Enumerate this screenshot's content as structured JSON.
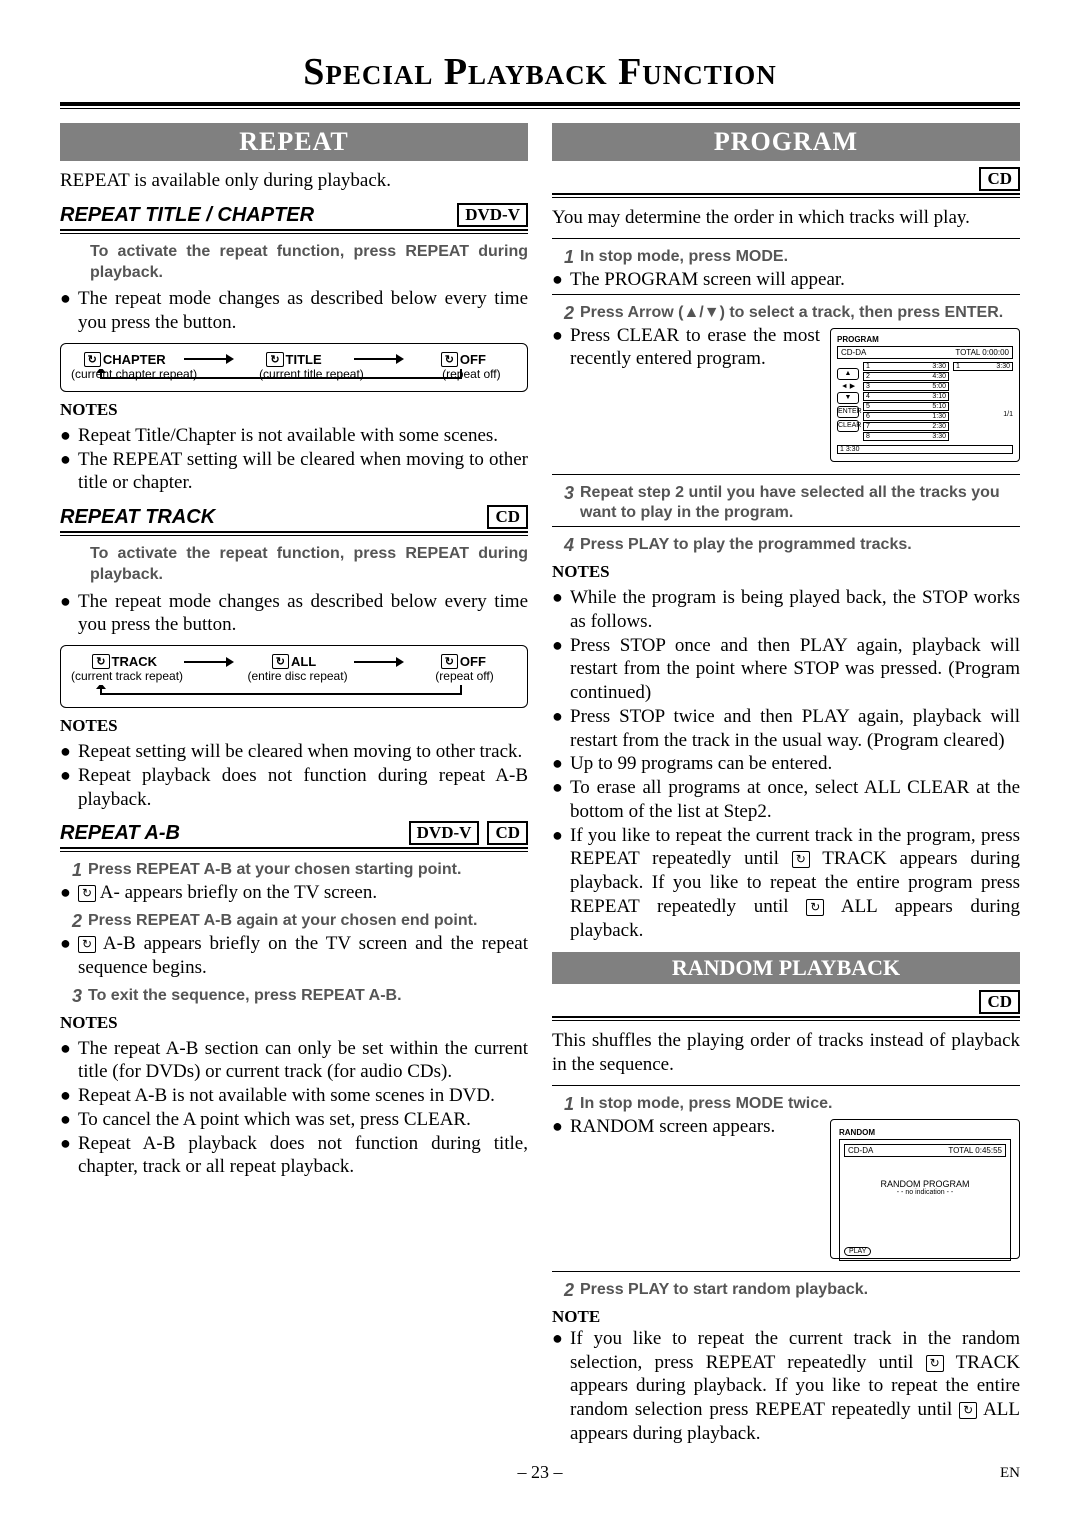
{
  "pageTitle": "Special Playback Function",
  "pageNum": "– 23 –",
  "lang": "EN",
  "repeat": {
    "banner": "REPEAT",
    "intro": "REPEAT is available only during playback.",
    "titleChapter": {
      "heading": "REPEAT TITLE / CHAPTER",
      "badge": "DVD-V",
      "instr": "To activate the repeat function, press REPEAT during playback.",
      "body": "The repeat mode changes as described below every time you press the button.",
      "flow": {
        "a": "CHAPTER",
        "aSub": "(current chapter repeat)",
        "b": "TITLE",
        "bSub": "(current title repeat)",
        "c": "OFF",
        "cSub": "(repeat off)"
      },
      "notesLabel": "NOTES",
      "notes": [
        "Repeat Title/Chapter is not available with some scenes.",
        "The REPEAT setting will be cleared when moving to other title or chapter."
      ]
    },
    "track": {
      "heading": "REPEAT TRACK",
      "badge": "CD",
      "instr": "To activate the repeat function, press REPEAT during playback.",
      "body": "The repeat mode changes as described below every time you press the button.",
      "flow": {
        "a": "TRACK",
        "aSub": "(current track repeat)",
        "b": "ALL",
        "bSub": "(entire disc repeat)",
        "c": "OFF",
        "cSub": "(repeat off)"
      },
      "notesLabel": "NOTES",
      "notes": [
        "Repeat setting will be cleared when moving to other track.",
        "Repeat playback does not function during repeat A-B playback."
      ]
    },
    "ab": {
      "heading": "REPEAT A-B",
      "badge1": "DVD-V",
      "badge2": "CD",
      "steps": [
        {
          "n": "1",
          "t": "Press REPEAT A-B at your chosen starting point."
        },
        {
          "n": "2",
          "t": "Press REPEAT A-B again at your chosen end point."
        },
        {
          "n": "3",
          "t": "To exit the sequence, press REPEAT A-B."
        }
      ],
      "after1": " A- appears briefly on the TV screen.",
      "after2": " A-B appears briefly on the TV screen and the repeat sequence begins.",
      "notesLabel": "NOTES",
      "notes": [
        "The repeat A-B section can only be set within the current title (for DVDs) or current track (for audio CDs).",
        "Repeat A-B is not available with some scenes in DVD.",
        "To cancel the A point which was set, press CLEAR.",
        "Repeat A-B playback does not function during title, chapter, track or all repeat playback."
      ]
    }
  },
  "program": {
    "banner": "PROGRAM",
    "badge": "CD",
    "intro": "You may determine the order in which tracks will play.",
    "steps": [
      {
        "n": "1",
        "t": "In stop mode, press MODE."
      },
      {
        "n": "2",
        "t": "Press Arrow (▲/▼) to select a track, then press ENTER."
      },
      {
        "n": "3",
        "t": "Repeat step 2 until you have selected all the tracks you want to play in the program."
      },
      {
        "n": "4",
        "t": "Press PLAY to play the programmed tracks."
      }
    ],
    "after1": "The PROGRAM screen will appear.",
    "after2": "Press CLEAR to erase the most recently entered program.",
    "screen": {
      "title": "PROGRAM",
      "disc": "CD-DA",
      "total": "TOTAL 0:00:00",
      "tracks": [
        {
          "i": "1",
          "t": "3:30"
        },
        {
          "i": "2",
          "t": "4:30"
        },
        {
          "i": "3",
          "t": "5:00"
        },
        {
          "i": "4",
          "t": "3:10"
        },
        {
          "i": "5",
          "t": "5:10"
        },
        {
          "i": "6",
          "t": "1:30"
        },
        {
          "i": "7",
          "t": "2:30"
        },
        {
          "i": "8",
          "t": "3:30"
        }
      ],
      "prog1": {
        "i": "1",
        "t": "3:30"
      },
      "page": "1/1",
      "enter": "ENTER",
      "clear": "CLEAR",
      "sel": "1  3:30"
    },
    "notesLabel": "NOTES",
    "notes": [
      "While the program is being played back, the STOP works as follows.",
      "Press STOP once and then PLAY again, playback will restart from the point where STOP was pressed. (Program continued)",
      "Press STOP twice and then PLAY again, playback will restart from the track in the usual way. (Program cleared)",
      "Up to 99 programs can be entered.",
      "To erase all programs at once, select ALL CLEAR at the bottom of the list at Step2.",
      "If you like to repeat the current track in the program, press REPEAT repeatedly until  TRACK appears during playback. If you like to repeat the entire program press REPEAT repeatedly until  ALL appears during playback."
    ]
  },
  "random": {
    "banner": "RANDOM PLAYBACK",
    "badge": "CD",
    "intro": "This shuffles the playing order of tracks instead of playback in the sequence.",
    "steps": [
      {
        "n": "1",
        "t": "In stop mode, press MODE twice."
      },
      {
        "n": "2",
        "t": "Press PLAY to start random playback."
      }
    ],
    "after1": "RANDOM screen appears.",
    "screen": {
      "title": "RANDOM",
      "disc": "CD-DA",
      "total": "TOTAL 0:45:55",
      "center1": "RANDOM PROGRAM",
      "center2": "- - no indication - -",
      "play": "PLAY"
    },
    "notesLabel": "NOTE",
    "note": "If you like to repeat the current track in the random selection, press REPEAT repeatedly until  TRACK appears during playback. If you like to repeat the entire random selection press REPEAT repeatedly until  ALL appears during playback."
  }
}
